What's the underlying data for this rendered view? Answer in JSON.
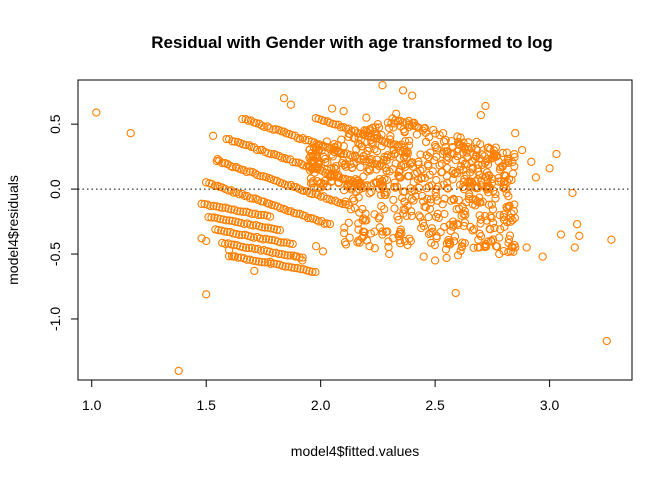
{
  "chart_data": {
    "type": "scatter",
    "title": "Residual with Gender with age transformed to log",
    "xlabel": "model4$fitted.values",
    "ylabel": "model4$residuals",
    "xlim": [
      0.94,
      3.36
    ],
    "ylim": [
      -1.47,
      0.84
    ],
    "x_ticks": [
      1.0,
      1.5,
      2.0,
      2.5,
      3.0
    ],
    "x_tick_labels": [
      "1.0",
      "1.5",
      "2.0",
      "2.5",
      "3.0"
    ],
    "y_ticks": [
      -1.0,
      -0.5,
      0.0,
      0.5
    ],
    "y_tick_labels": [
      "-1.0",
      "-0.5",
      "0.0",
      "0.5"
    ],
    "reference_line": {
      "y": 0,
      "style": "dotted"
    },
    "point_color": "#FF7F00",
    "marker": "open-circle",
    "grid": false,
    "points": {
      "x": [
        1.02,
        1.17,
        1.38,
        1.5,
        3.25,
        2.59,
        3.27,
        1.53,
        3.0,
        3.03,
        2.92,
        2.94,
        3.1,
        3.12,
        3.13,
        3.11,
        2.97,
        2.72,
        2.7,
        2.85,
        2.88,
        2.27,
        2.36,
        2.4,
        1.84,
        1.87,
        2.05,
        2.1,
        1.63,
        1.55,
        1.58,
        1.48,
        1.5,
        1.71,
        1.78,
        1.98,
        2.01,
        1.89,
        1.92,
        2.3,
        2.45,
        1.62,
        1.6,
        2.5,
        2.55,
        2.6,
        2.78,
        2.83,
        3.05,
        2.9,
        2.2,
        2.25,
        2.33,
        2.15
      ],
      "y": [
        0.59,
        0.43,
        -1.4,
        -0.81,
        -1.17,
        -0.8,
        -0.39,
        0.41,
        0.16,
        0.27,
        0.21,
        0.09,
        -0.03,
        -0.27,
        -0.36,
        -0.45,
        -0.52,
        0.64,
        0.57,
        0.43,
        0.3,
        0.8,
        0.76,
        0.72,
        0.7,
        0.65,
        0.62,
        0.6,
        0.17,
        0.23,
        0.2,
        -0.38,
        -0.4,
        -0.63,
        -0.56,
        -0.44,
        -0.48,
        -0.52,
        -0.55,
        -0.5,
        -0.52,
        -0.52,
        -0.47,
        -0.55,
        -0.53,
        -0.51,
        -0.5,
        -0.48,
        -0.35,
        -0.45,
        0.55,
        0.5,
        0.58,
        0.45
      ]
    },
    "generated_clusters": [
      {
        "name": "residual-bands",
        "x_range": [
          1.5,
          2.85
        ],
        "y_intercept_at": {
          "x": 1.55,
          "y": 0.02
        },
        "band_spacing": 0.1,
        "slope": -0.6,
        "bands": 12
      },
      {
        "name": "upper-cloud",
        "x_range": [
          1.95,
          2.85
        ],
        "y_range": [
          0.0,
          0.55
        ]
      }
    ]
  }
}
